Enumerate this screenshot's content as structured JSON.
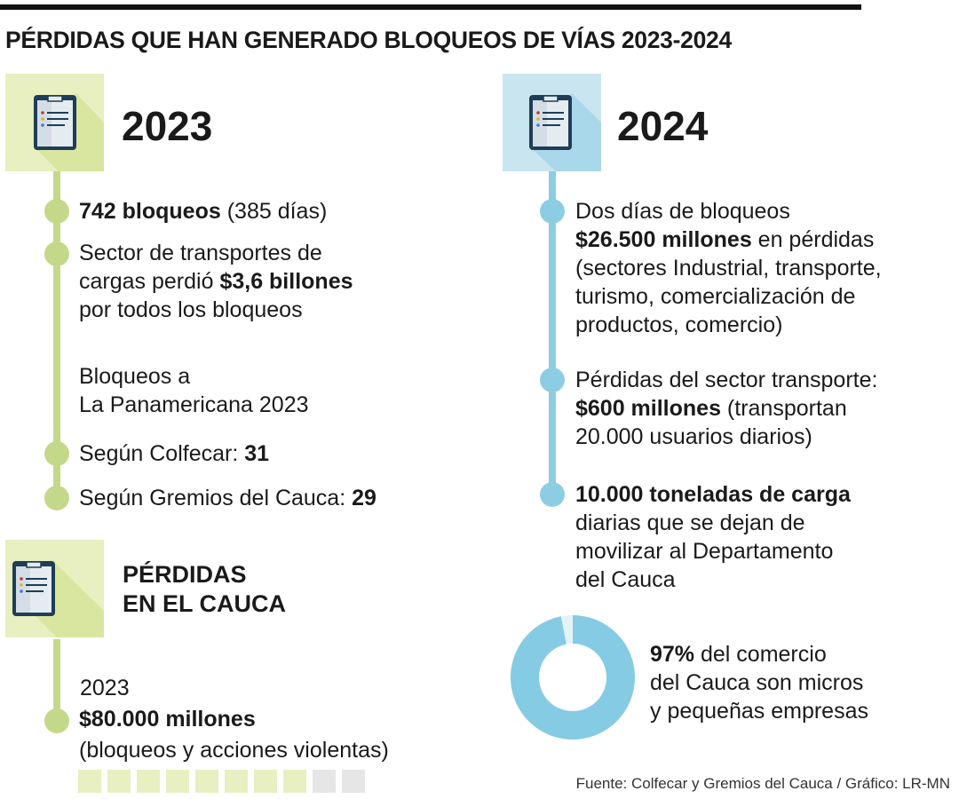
{
  "title": "PÉRDIDAS QUE HAN GENERADO BLOQUEOS DE VÍAS 2023-2024",
  "colors": {
    "green": "#c4d88a",
    "green_light": "#e8efc0",
    "blue": "#8ccde3",
    "blue_light": "#c9e6f0",
    "donut": "#85cbe3",
    "donut_rest": "#e4f3f8",
    "gray": "#e6e6e6"
  },
  "left": {
    "icon": "clipboard-icon",
    "year": "2023",
    "items": [
      {
        "b": "742 bloqueos",
        "r": " (385 días)"
      },
      {
        "l1": "Sector de transportes de",
        "l2a": "cargas perdió ",
        "l2b": "$3,6 billones",
        "l3": "por todos los bloqueos"
      },
      {
        "l1": "Bloqueos a",
        "l2": "La Panamericana 2023"
      },
      {
        "r": "Según Colfecar: ",
        "b": "31"
      },
      {
        "r": "Según Gremios del Cauca: ",
        "b": "29"
      }
    ],
    "losses": {
      "icon": "clipboard-icon",
      "title_1": "PÉRDIDAS",
      "title_2": "EN EL CAUCA",
      "year": "2023",
      "amount": "$80.000 millones",
      "note": "(bloqueos y acciones violentas)",
      "squares_filled": 8,
      "squares_total": 10
    }
  },
  "right": {
    "icon": "clipboard-icon",
    "year": "2024",
    "items": [
      {
        "l1": "Dos días de bloqueos",
        "l2b": "$26.500 millones",
        "l2r": " en pérdidas",
        "l3": "(sectores Industrial, transporte,",
        "l4": "turismo, comercialización de",
        "l5": "productos, comercio)"
      },
      {
        "l1": "Pérdidas del sector transporte:",
        "l2b": "$600 millones",
        "l2r": " (transportan",
        "l3": "20.000 usuarios diarios)"
      },
      {
        "l1b": "10.000 toneladas de carga",
        "l2": "diarias que se dejan de",
        "l3": "movilizar al Departamento",
        "l4": "del Cauca"
      }
    ],
    "donut_text": {
      "b": "97%",
      "r1": " del comercio",
      "l2": "del Cauca son micros",
      "l3": "y pequeñas empresas"
    }
  },
  "chart_data": {
    "type": "pie",
    "variant": "donut",
    "values": [
      97,
      3
    ],
    "colors": [
      "#85cbe3",
      "#e4f3f8"
    ]
  },
  "source": "Fuente: Colfecar y Gremios del Cauca / Gráfico: LR-MN"
}
